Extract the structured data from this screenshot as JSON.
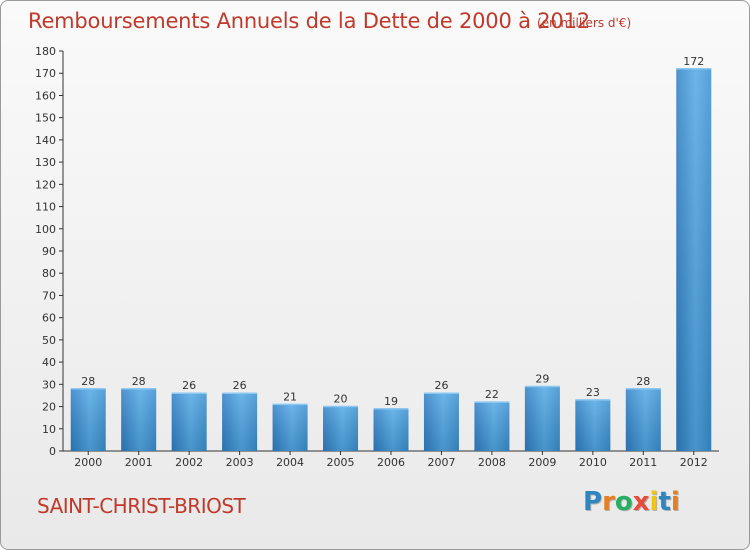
{
  "title": "Remboursements Annuels de la Dette de 2000 à 2012",
  "unit_note": "(en milliers d'€)",
  "commune": "SAINT-CHRIST-BRIOST",
  "logo": {
    "text": "Proxiti",
    "letters": [
      {
        "ch": "P",
        "color": "#2e86c1"
      },
      {
        "ch": "r",
        "color": "#e67e22"
      },
      {
        "ch": "o",
        "color": "#27ae60"
      },
      {
        "ch": "x",
        "color": "#e74c3c"
      },
      {
        "ch": "i",
        "color": "#f1c40f"
      },
      {
        "ch": "t",
        "color": "#2e86c1"
      },
      {
        "ch": "i",
        "color": "#e67e22"
      }
    ]
  },
  "chart_data": {
    "type": "bar",
    "title": "Remboursements Annuels de la Dette de 2000 à 2012",
    "xlabel": "",
    "ylabel": "(en milliers d'€)",
    "categories": [
      "2000",
      "2001",
      "2002",
      "2003",
      "2004",
      "2005",
      "2006",
      "2007",
      "2008",
      "2009",
      "2010",
      "2011",
      "2012"
    ],
    "values": [
      28,
      28,
      26,
      26,
      21,
      20,
      19,
      26,
      22,
      29,
      23,
      28,
      172
    ],
    "ylim": [
      0,
      180
    ],
    "yticks": [
      0,
      10,
      20,
      30,
      40,
      50,
      60,
      70,
      80,
      90,
      100,
      110,
      120,
      130,
      140,
      150,
      160,
      170,
      180
    ],
    "grid": false,
    "bar_color": "#3f97d8"
  }
}
